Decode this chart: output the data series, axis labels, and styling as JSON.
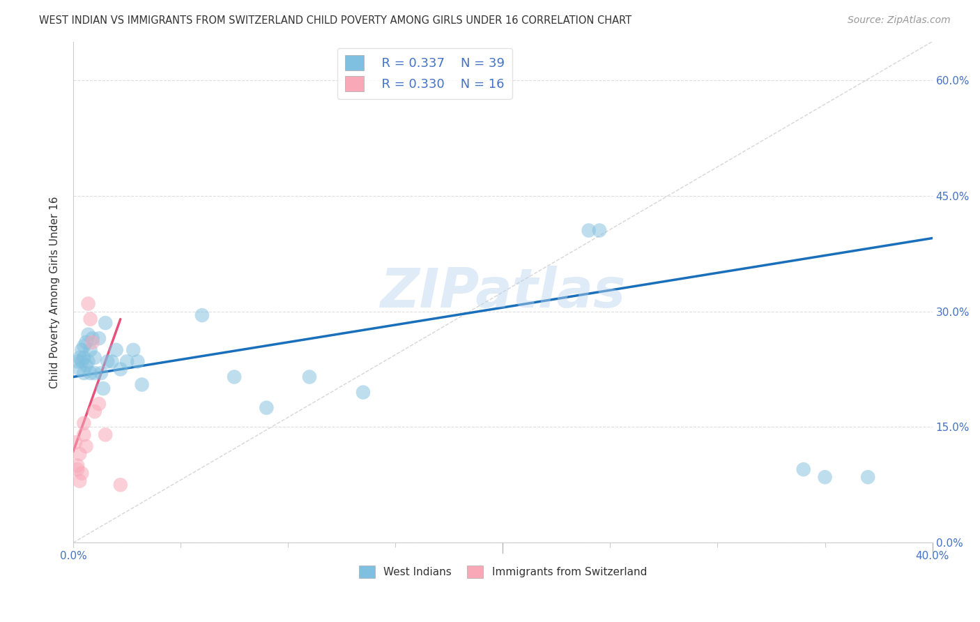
{
  "title": "WEST INDIAN VS IMMIGRANTS FROM SWITZERLAND CHILD POVERTY AMONG GIRLS UNDER 16 CORRELATION CHART",
  "source": "Source: ZipAtlas.com",
  "ylabel": "Child Poverty Among Girls Under 16",
  "xlim": [
    0.0,
    0.4
  ],
  "ylim": [
    0.0,
    0.65
  ],
  "ytick_labels_right": [
    "0.0%",
    "15.0%",
    "30.0%",
    "45.0%",
    "60.0%"
  ],
  "xtick_labels": [
    "0.0%",
    "",
    "",
    "",
    "",
    "",
    "",
    "",
    "40.0%"
  ],
  "watermark": "ZIPatlas",
  "legend_R1": "R = 0.337",
  "legend_N1": "N = 39",
  "legend_R2": "R = 0.330",
  "legend_N2": "N = 16",
  "color_blue": "#7fbfdf",
  "color_pink": "#f9a8b8",
  "color_blue_line": "#1a6fba",
  "color_pink_line": "#e8507a",
  "color_diag": "#cccccc",
  "west_indians_x": [
    0.002,
    0.003,
    0.003,
    0.004,
    0.004,
    0.005,
    0.005,
    0.005,
    0.006,
    0.006,
    0.007,
    0.007,
    0.008,
    0.008,
    0.009,
    0.01,
    0.01,
    0.012,
    0.013,
    0.014,
    0.015,
    0.016,
    0.018,
    0.02,
    0.022,
    0.025,
    0.028,
    0.03,
    0.032,
    0.06,
    0.075,
    0.09,
    0.11,
    0.135,
    0.24,
    0.245,
    0.34,
    0.35,
    0.37
  ],
  "west_indians_y": [
    0.235,
    0.24,
    0.225,
    0.25,
    0.235,
    0.255,
    0.24,
    0.22,
    0.26,
    0.23,
    0.27,
    0.235,
    0.25,
    0.22,
    0.265,
    0.24,
    0.22,
    0.265,
    0.22,
    0.2,
    0.285,
    0.235,
    0.235,
    0.25,
    0.225,
    0.235,
    0.25,
    0.235,
    0.205,
    0.295,
    0.215,
    0.175,
    0.215,
    0.195,
    0.405,
    0.405,
    0.095,
    0.085,
    0.085
  ],
  "swiss_x": [
    0.001,
    0.002,
    0.002,
    0.003,
    0.003,
    0.004,
    0.005,
    0.005,
    0.006,
    0.007,
    0.008,
    0.009,
    0.01,
    0.012,
    0.015,
    0.022
  ],
  "swiss_y": [
    0.13,
    0.1,
    0.095,
    0.115,
    0.08,
    0.09,
    0.155,
    0.14,
    0.125,
    0.31,
    0.29,
    0.26,
    0.17,
    0.18,
    0.14,
    0.075
  ],
  "blue_line_x": [
    0.0,
    0.4
  ],
  "blue_line_y": [
    0.215,
    0.395
  ],
  "pink_line_x": [
    0.0,
    0.022
  ],
  "pink_line_y": [
    0.118,
    0.29
  ],
  "diag_line_x": [
    0.0,
    0.4
  ],
  "diag_line_y": [
    0.0,
    0.65
  ],
  "background_color": "#ffffff",
  "grid_color": "#dddddd"
}
